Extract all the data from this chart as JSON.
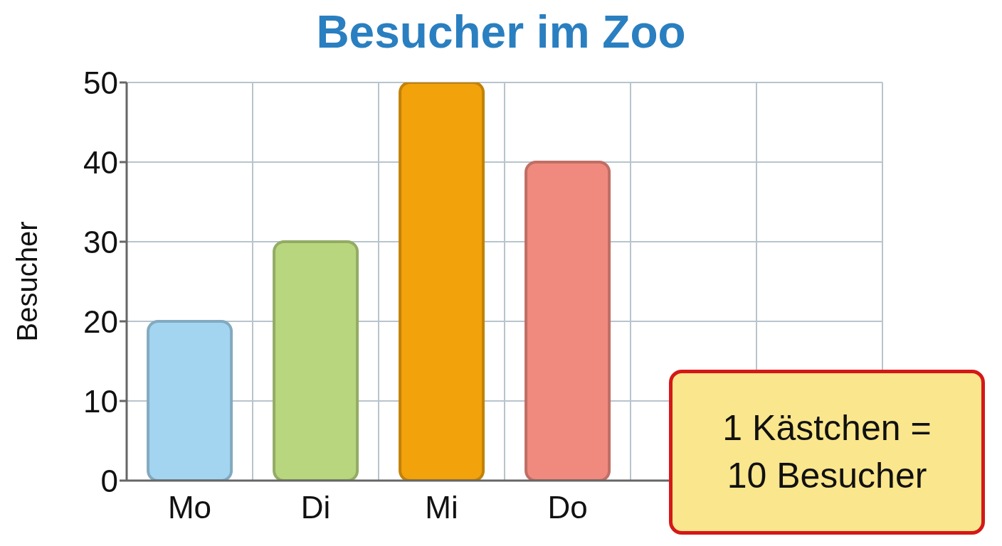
{
  "chart_data": {
    "type": "bar",
    "title": "Besucher im Zoo",
    "ylabel": "Besucher",
    "categories": [
      "Mo",
      "Di",
      "Mi",
      "Do",
      null,
      null
    ],
    "values": [
      20,
      30,
      50,
      40,
      null,
      null
    ],
    "colors": [
      "#a3d5f0",
      "#b8d67e",
      "#f2a20a",
      "#f08a7e",
      "#cccccc",
      "#cccccc"
    ],
    "ylim": [
      0,
      50
    ],
    "yticks": [
      0,
      10,
      20,
      30,
      40,
      50
    ],
    "grid": true,
    "annotations": [
      "1 Kästchen = 10 Besucher"
    ]
  }
}
